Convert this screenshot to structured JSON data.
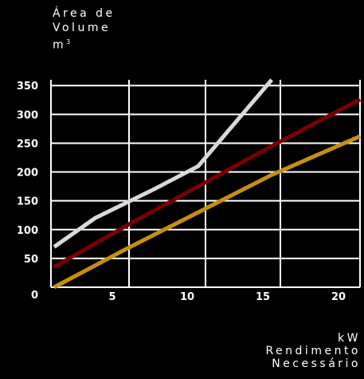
{
  "chart_data": {
    "type": "line",
    "ylabel": {
      "line1": "Área de",
      "line2": "Volume",
      "unit": "m",
      "unit_sup": "3"
    },
    "xlabel": {
      "line1": "kW",
      "line2": "Rendimento",
      "line3": "Necessário"
    },
    "xlim": [
      0,
      21
    ],
    "ylim": [
      0,
      360
    ],
    "x_ticks": [
      5,
      10,
      15,
      20
    ],
    "y_ticks": [
      350,
      300,
      250,
      200,
      150,
      100,
      50,
      0
    ],
    "grid": true,
    "series": [
      {
        "color": "#d9d9d9",
        "x": [
          0,
          3,
          7,
          10,
          15
        ],
        "y": [
          70,
          120,
          170,
          210,
          360
        ]
      },
      {
        "color": "#7a0000",
        "x": [
          0,
          5,
          10,
          15,
          21
        ],
        "y": [
          35,
          105,
          175,
          245,
          326
        ]
      },
      {
        "color": "#c8900a",
        "x": [
          0,
          5,
          10,
          15,
          21
        ],
        "y": [
          0,
          65,
          130,
          195,
          262
        ]
      }
    ]
  }
}
